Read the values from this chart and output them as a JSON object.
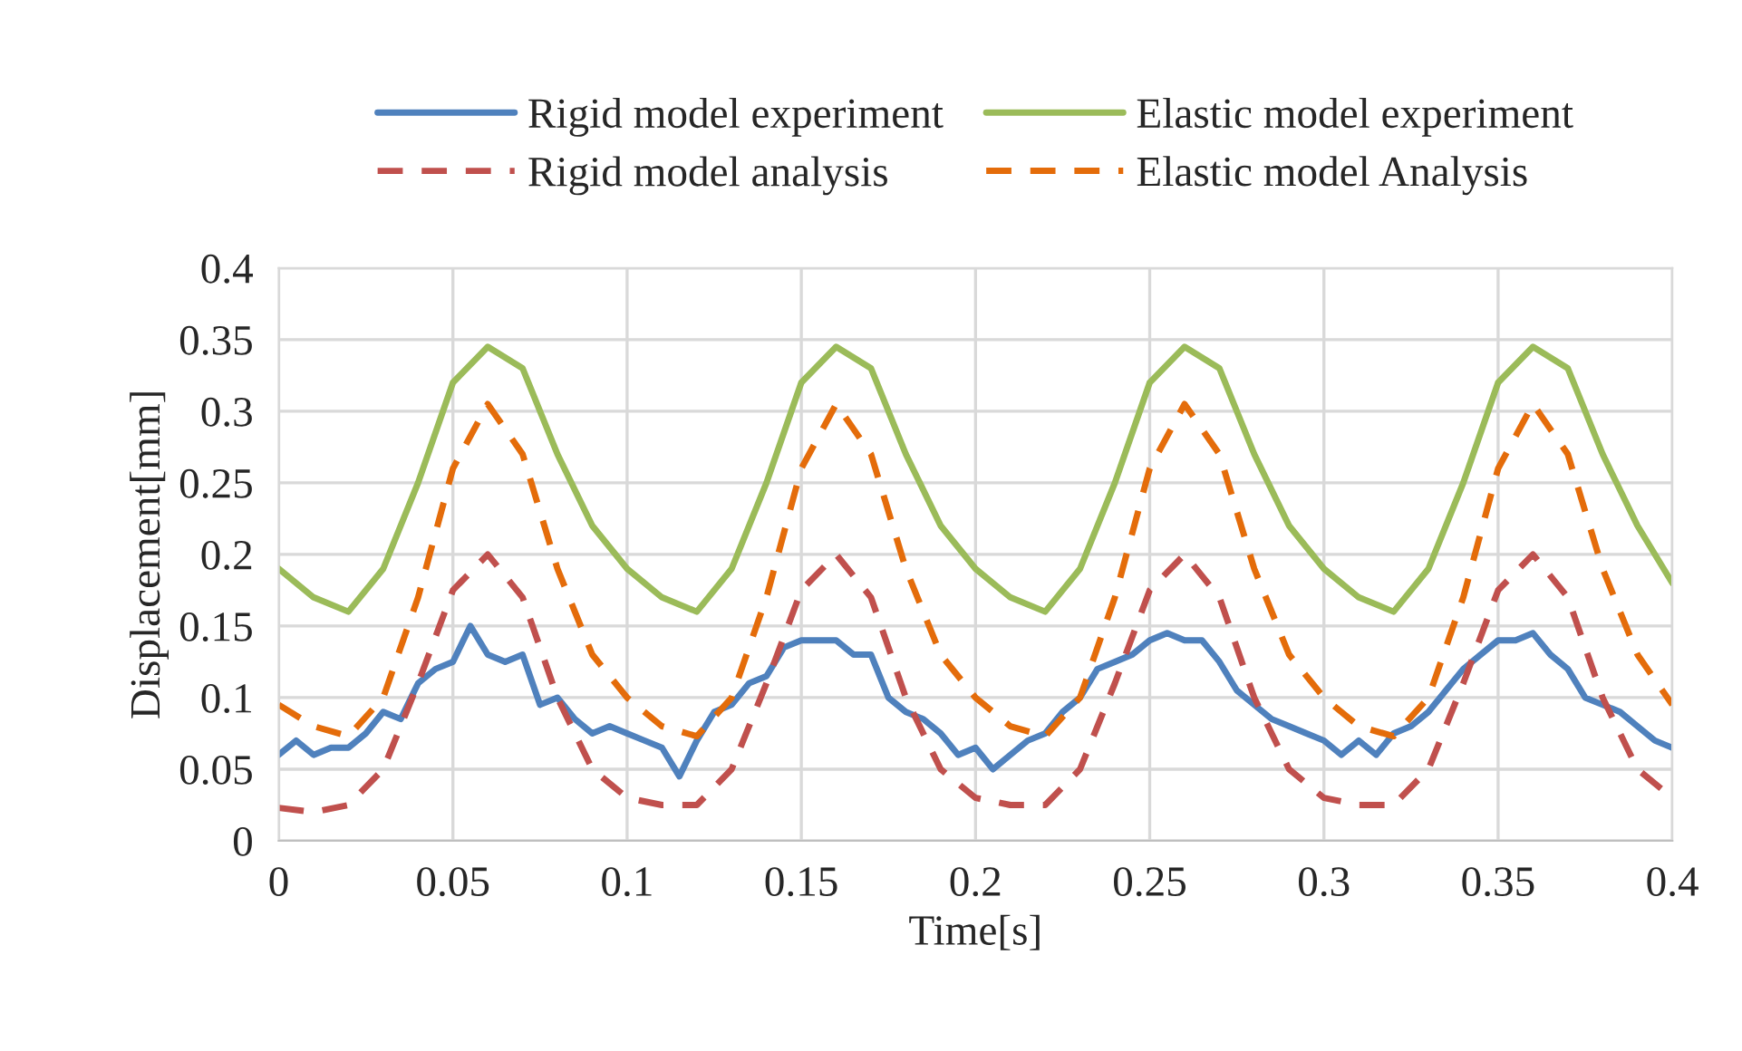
{
  "chart_data": {
    "type": "line",
    "xlabel": "Time[s]",
    "ylabel": "Displacement[mm]",
    "xlim": [
      0,
      0.4
    ],
    "xticks": [
      0,
      0.05,
      0.1,
      0.15,
      0.2,
      0.25,
      0.3,
      0.35,
      0.4
    ],
    "ylim": [
      0,
      0.4
    ],
    "yticks": [
      0,
      0.05,
      0.1,
      0.15,
      0.2,
      0.25,
      0.3,
      0.35,
      0.4
    ],
    "grid": true,
    "legend": "top",
    "marker": "none",
    "x": [
      0,
      0.01,
      0.02,
      0.03,
      0.04,
      0.05,
      0.06,
      0.07,
      0.08,
      0.09,
      0.1,
      0.11,
      0.12,
      0.13,
      0.14,
      0.15,
      0.16,
      0.17,
      0.18,
      0.19,
      0.2,
      0.21,
      0.22,
      0.23,
      0.24,
      0.25,
      0.26,
      0.27,
      0.28,
      0.29,
      0.3,
      0.31,
      0.32,
      0.33,
      0.34,
      0.35,
      0.36,
      0.37,
      0.38,
      0.39,
      0.4
    ],
    "series": [
      {
        "name": "Rigid model experiment",
        "color": "#4f81bd",
        "line_style": "solid",
        "x": [
          0,
          0.005,
          0.01,
          0.015,
          0.02,
          0.025,
          0.03,
          0.035,
          0.04,
          0.045,
          0.05,
          0.055,
          0.06,
          0.065,
          0.07,
          0.075,
          0.08,
          0.085,
          0.09,
          0.095,
          0.1,
          0.105,
          0.11,
          0.115,
          0.12,
          0.125,
          0.13,
          0.135,
          0.14,
          0.145,
          0.15,
          0.155,
          0.16,
          0.165,
          0.17,
          0.175,
          0.18,
          0.185,
          0.19,
          0.195,
          0.2,
          0.205,
          0.21,
          0.215,
          0.22,
          0.225,
          0.23,
          0.235,
          0.24,
          0.245,
          0.25,
          0.255,
          0.26,
          0.265,
          0.27,
          0.275,
          0.28,
          0.285,
          0.29,
          0.295,
          0.3,
          0.305,
          0.31,
          0.315,
          0.32,
          0.325,
          0.33,
          0.335,
          0.34,
          0.345,
          0.35,
          0.355,
          0.36,
          0.365,
          0.37,
          0.375,
          0.38,
          0.385,
          0.39,
          0.395,
          0.4
        ],
        "values": [
          0.06,
          0.07,
          0.06,
          0.065,
          0.065,
          0.075,
          0.09,
          0.085,
          0.11,
          0.12,
          0.125,
          0.15,
          0.13,
          0.125,
          0.13,
          0.095,
          0.1,
          0.085,
          0.075,
          0.08,
          0.075,
          0.07,
          0.065,
          0.045,
          0.07,
          0.09,
          0.095,
          0.11,
          0.115,
          0.135,
          0.14,
          0.14,
          0.14,
          0.13,
          0.13,
          0.1,
          0.09,
          0.085,
          0.075,
          0.06,
          0.065,
          0.05,
          0.06,
          0.07,
          0.075,
          0.09,
          0.1,
          0.12,
          0.125,
          0.13,
          0.14,
          0.145,
          0.14,
          0.14,
          0.125,
          0.105,
          0.095,
          0.085,
          0.08,
          0.075,
          0.07,
          0.06,
          0.07,
          0.06,
          0.075,
          0.08,
          0.09,
          0.105,
          0.12,
          0.13,
          0.14,
          0.14,
          0.145,
          0.13,
          0.12,
          0.1,
          0.095,
          0.09,
          0.08,
          0.07,
          0.065
        ]
      },
      {
        "name": "Rigid model analysis",
        "color": "#c0504d",
        "line_style": "dashed",
        "values": [
          0.023,
          0.02,
          0.025,
          0.05,
          0.11,
          0.175,
          0.2,
          0.17,
          0.1,
          0.05,
          0.03,
          0.025,
          0.025,
          0.05,
          0.11,
          0.175,
          0.2,
          0.17,
          0.1,
          0.05,
          0.03,
          0.025,
          0.025,
          0.05,
          0.11,
          0.175,
          0.2,
          0.17,
          0.1,
          0.05,
          0.03,
          0.025,
          0.025,
          0.05,
          0.11,
          0.175,
          0.2,
          0.17,
          0.1,
          0.05,
          0.03
        ]
      },
      {
        "name": "Elastic model experiment",
        "color": "#9bbb59",
        "line_style": "solid",
        "values": [
          0.19,
          0.17,
          0.16,
          0.19,
          0.25,
          0.32,
          0.345,
          0.33,
          0.27,
          0.22,
          0.19,
          0.17,
          0.16,
          0.19,
          0.25,
          0.32,
          0.345,
          0.33,
          0.27,
          0.22,
          0.19,
          0.17,
          0.16,
          0.19,
          0.25,
          0.32,
          0.345,
          0.33,
          0.27,
          0.22,
          0.19,
          0.17,
          0.16,
          0.19,
          0.25,
          0.32,
          0.345,
          0.33,
          0.27,
          0.22,
          0.18
        ]
      },
      {
        "name": "Elastic model Analysis",
        "color": "#e46c0a",
        "line_style": "dashed",
        "values": [
          0.095,
          0.08,
          0.073,
          0.1,
          0.17,
          0.26,
          0.305,
          0.27,
          0.19,
          0.13,
          0.1,
          0.08,
          0.073,
          0.1,
          0.17,
          0.26,
          0.305,
          0.27,
          0.19,
          0.13,
          0.1,
          0.08,
          0.073,
          0.1,
          0.17,
          0.26,
          0.305,
          0.27,
          0.19,
          0.13,
          0.1,
          0.08,
          0.073,
          0.1,
          0.17,
          0.26,
          0.305,
          0.27,
          0.19,
          0.13,
          0.095
        ]
      }
    ]
  }
}
